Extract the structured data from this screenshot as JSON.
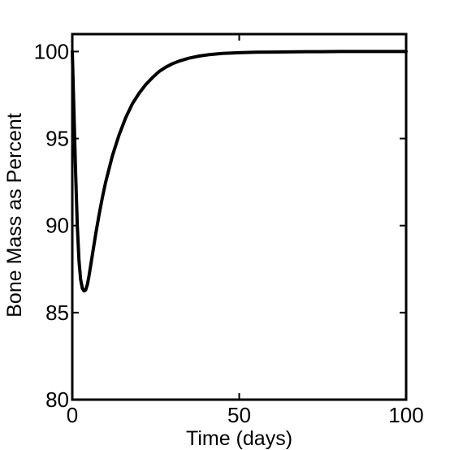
{
  "chart_data": {
    "type": "line",
    "title": "",
    "xlabel": "Time (days)",
    "ylabel": "Bone Mass as Percent",
    "xlim": [
      0,
      100
    ],
    "ylim": [
      80,
      101
    ],
    "xticks": [
      0,
      50,
      100
    ],
    "yticks": [
      80,
      85,
      90,
      95,
      100
    ],
    "grid": false,
    "legend": "none",
    "line_color": "#000000",
    "series": [
      {
        "x": [
          0,
          0.5,
          1,
          1.5,
          2,
          2.5,
          3,
          3.5,
          4,
          4.5,
          5,
          6,
          7,
          8,
          9,
          10,
          12,
          14,
          16,
          18,
          20,
          22,
          24,
          26,
          28,
          30,
          32,
          35,
          38,
          41,
          45,
          50,
          55,
          60,
          65,
          70,
          75,
          80,
          85,
          90,
          95,
          100
        ],
        "y": [
          100,
          96.5,
          93.0,
          90.0,
          88.0,
          86.9,
          86.4,
          86.25,
          86.3,
          86.6,
          87.1,
          88.3,
          89.5,
          90.6,
          91.6,
          92.5,
          94.0,
          95.2,
          96.2,
          97.0,
          97.6,
          98.1,
          98.5,
          98.85,
          99.1,
          99.3,
          99.45,
          99.62,
          99.74,
          99.82,
          99.89,
          99.93,
          99.96,
          99.97,
          99.98,
          99.99,
          99.99,
          100,
          100,
          100,
          100,
          100
        ]
      }
    ]
  }
}
